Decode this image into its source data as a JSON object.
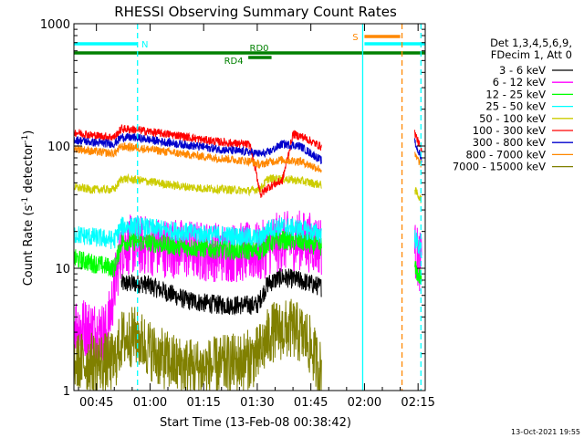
{
  "chart_data": {
    "type": "line",
    "title": "RHESSI Observing Summary Count Rates",
    "xlabel": "Start Time (13-Feb-08 00:38:42)",
    "ylabel_main": "Count Rate (s",
    "ylabel_sup1": "-1",
    "ylabel_mid": " detector",
    "ylabel_sup2": "-1",
    "ylabel_end": ")",
    "x_range_min": [
      38.7,
      137
    ],
    "y_range": [
      1,
      1000
    ],
    "y_scale": "log",
    "x_ticks": [
      {
        "label": "00:45",
        "value": 45
      },
      {
        "label": "01:00",
        "value": 60
      },
      {
        "label": "01:15",
        "value": 75
      },
      {
        "label": "01:30",
        "value": 90
      },
      {
        "label": "01:45",
        "value": 105
      },
      {
        "label": "02:00",
        "value": 120
      },
      {
        "label": "02:15",
        "value": 135
      }
    ],
    "y_ticks": [
      {
        "label": "1",
        "value": 1
      },
      {
        "label": "10",
        "value": 10
      },
      {
        "label": "100",
        "value": 100
      },
      {
        "label": "1000",
        "value": 1000
      }
    ],
    "legend_header": [
      "Det 1,3,4,5,6,9,",
      "FDecim 1, Att 0"
    ],
    "series": [
      {
        "name": "3 - 6 keV",
        "color": "#000000",
        "points": [
          [
            52,
            7.5
          ],
          [
            58,
            7.5
          ],
          [
            60,
            7.2
          ],
          [
            64,
            6.5
          ],
          [
            70,
            5.5
          ],
          [
            75,
            5.2
          ],
          [
            80,
            5.0
          ],
          [
            85,
            5.0
          ],
          [
            90,
            5.0
          ],
          [
            93,
            7.5
          ],
          [
            97,
            8.5
          ],
          [
            103,
            7.8
          ],
          [
            108,
            7.0
          ]
        ]
      },
      {
        "name": "6 - 12 keV",
        "color": "#ff00ff",
        "points": [
          [
            38.7,
            3.5
          ],
          [
            43,
            3.2
          ],
          [
            48,
            3.0
          ],
          [
            52,
            15.5
          ],
          [
            58,
            15.5
          ],
          [
            62,
            15.0
          ],
          [
            68,
            14.5
          ],
          [
            75,
            13.8
          ],
          [
            82,
            13.5
          ],
          [
            88,
            13.5
          ],
          [
            91,
            13.5
          ],
          [
            93,
            15.5
          ],
          [
            97,
            16.5
          ],
          [
            102,
            17.0
          ],
          [
            108,
            15.5
          ],
          [
            134,
            14.0
          ],
          [
            136,
            10.5
          ]
        ]
      },
      {
        "name": "12 - 25 keV",
        "color": "#00ff00",
        "points": [
          [
            38.7,
            12.0
          ],
          [
            44,
            11.0
          ],
          [
            50,
            10.0
          ],
          [
            52,
            16.5
          ],
          [
            56,
            16.5
          ],
          [
            62,
            16.0
          ],
          [
            68,
            15.0
          ],
          [
            75,
            14.5
          ],
          [
            82,
            14.0
          ],
          [
            88,
            14.0
          ],
          [
            91,
            13.8
          ],
          [
            93,
            16.0
          ],
          [
            97,
            17.0
          ],
          [
            102,
            16.5
          ],
          [
            108,
            15.0
          ],
          [
            134,
            10.0
          ],
          [
            136,
            8.0
          ]
        ]
      },
      {
        "name": "25 - 50 keV",
        "color": "#00ffff",
        "points": [
          [
            38.7,
            19.0
          ],
          [
            44,
            18.0
          ],
          [
            50,
            17.0
          ],
          [
            52,
            22.0
          ],
          [
            56,
            22.0
          ],
          [
            62,
            21.0
          ],
          [
            68,
            20.0
          ],
          [
            75,
            19.0
          ],
          [
            82,
            18.5
          ],
          [
            88,
            18.0
          ],
          [
            91,
            17.5
          ],
          [
            93,
            21.0
          ],
          [
            97,
            22.0
          ],
          [
            102,
            21.0
          ],
          [
            108,
            19.0
          ],
          [
            134,
            18.0
          ],
          [
            136,
            13.5
          ]
        ]
      },
      {
        "name": "50 - 100 keV",
        "color": "#cccc00",
        "points": [
          [
            38.7,
            46.0
          ],
          [
            44,
            44.0
          ],
          [
            50,
            44.0
          ],
          [
            52,
            54.0
          ],
          [
            56,
            53.0
          ],
          [
            62,
            50.0
          ],
          [
            68,
            47.0
          ],
          [
            75,
            45.0
          ],
          [
            82,
            44.0
          ],
          [
            88,
            43.0
          ],
          [
            91,
            45.0
          ],
          [
            93,
            54.0
          ],
          [
            97,
            54.0
          ],
          [
            102,
            52.0
          ],
          [
            108,
            48.0
          ],
          [
            134,
            44.0
          ],
          [
            136,
            36.0
          ]
        ]
      },
      {
        "name": "100 - 300 keV",
        "color": "#ff0000",
        "points": [
          [
            38.7,
            130.0
          ],
          [
            44,
            122.0
          ],
          [
            50,
            118.0
          ],
          [
            52,
            138.0
          ],
          [
            56,
            136.0
          ],
          [
            62,
            128.0
          ],
          [
            68,
            122.0
          ],
          [
            75,
            112.0
          ],
          [
            82,
            106.0
          ],
          [
            88,
            102.0
          ],
          [
            91,
            40.0
          ],
          [
            93,
            46.0
          ],
          [
            97,
            52.0
          ],
          [
            100,
            125.0
          ],
          [
            103,
            118.0
          ],
          [
            108,
            98.0
          ],
          [
            134,
            130.0
          ],
          [
            136,
            90.0
          ]
        ]
      },
      {
        "name": "300 - 800 keV",
        "color": "#0000cc",
        "points": [
          [
            38.7,
            113.0
          ],
          [
            44,
            107.0
          ],
          [
            50,
            104.0
          ],
          [
            52,
            118.0
          ],
          [
            56,
            117.0
          ],
          [
            62,
            110.0
          ],
          [
            68,
            104.0
          ],
          [
            75,
            98.0
          ],
          [
            82,
            92.0
          ],
          [
            88,
            89.0
          ],
          [
            91,
            86.0
          ],
          [
            93,
            88.0
          ],
          [
            97,
            104.0
          ],
          [
            102,
            100.0
          ],
          [
            108,
            76.0
          ],
          [
            134,
            108.0
          ],
          [
            136,
            78.0
          ]
        ]
      },
      {
        "name": "800 - 7000 keV",
        "color": "#ff8800",
        "points": [
          [
            38.7,
            96.0
          ],
          [
            44,
            90.0
          ],
          [
            50,
            87.0
          ],
          [
            52,
            99.0
          ],
          [
            56,
            97.0
          ],
          [
            62,
            92.0
          ],
          [
            68,
            87.0
          ],
          [
            75,
            82.0
          ],
          [
            82,
            78.0
          ],
          [
            88,
            75.0
          ],
          [
            91,
            70.0
          ],
          [
            93,
            74.0
          ],
          [
            97,
            77.0
          ],
          [
            102,
            75.0
          ],
          [
            108,
            64.0
          ],
          [
            134,
            84.0
          ],
          [
            136,
            70.0
          ]
        ]
      },
      {
        "name": "7000 - 15000 keV",
        "color": "#808000",
        "points": [
          [
            38.7,
            1.7
          ],
          [
            44,
            1.7
          ],
          [
            50,
            1.7
          ],
          [
            52,
            2.6
          ],
          [
            56,
            2.8
          ],
          [
            62,
            1.9
          ],
          [
            68,
            1.6
          ],
          [
            75,
            1.5
          ],
          [
            80,
            1.6
          ],
          [
            85,
            1.7
          ],
          [
            90,
            1.9
          ],
          [
            94,
            3.0
          ],
          [
            100,
            3.2
          ],
          [
            104,
            2.6
          ],
          [
            108,
            1.4
          ]
        ]
      }
    ],
    "bands": [
      {
        "label": "N",
        "color": "#00ffff",
        "x_start": 38.7,
        "x_end": 56.5,
        "row": 1
      },
      {
        "label": "",
        "color": "#00ffff",
        "x_start": 120,
        "x_end": 137,
        "row": 1
      },
      {
        "label": "S",
        "color": "#ff8800",
        "x_start": 120,
        "x_end": 130,
        "row": 0
      },
      {
        "label": "RD0",
        "color": "#008000",
        "x_start": 38.7,
        "x_end": 137,
        "row": 2
      },
      {
        "label": "RD4",
        "color": "#008000",
        "x_start": 87.5,
        "x_end": 94,
        "row": 3
      }
    ],
    "vlines": [
      {
        "x": 56.5,
        "color": "#00ffff",
        "dashed": true
      },
      {
        "x": 119.5,
        "color": "#00ffff",
        "dashed": false
      },
      {
        "x": 130.5,
        "color": "#ff8800",
        "dashed": true
      },
      {
        "x": 135.8,
        "color": "#00ffff",
        "dashed": true
      }
    ],
    "footer_timestamp": "13-Oct-2021 19:55"
  }
}
